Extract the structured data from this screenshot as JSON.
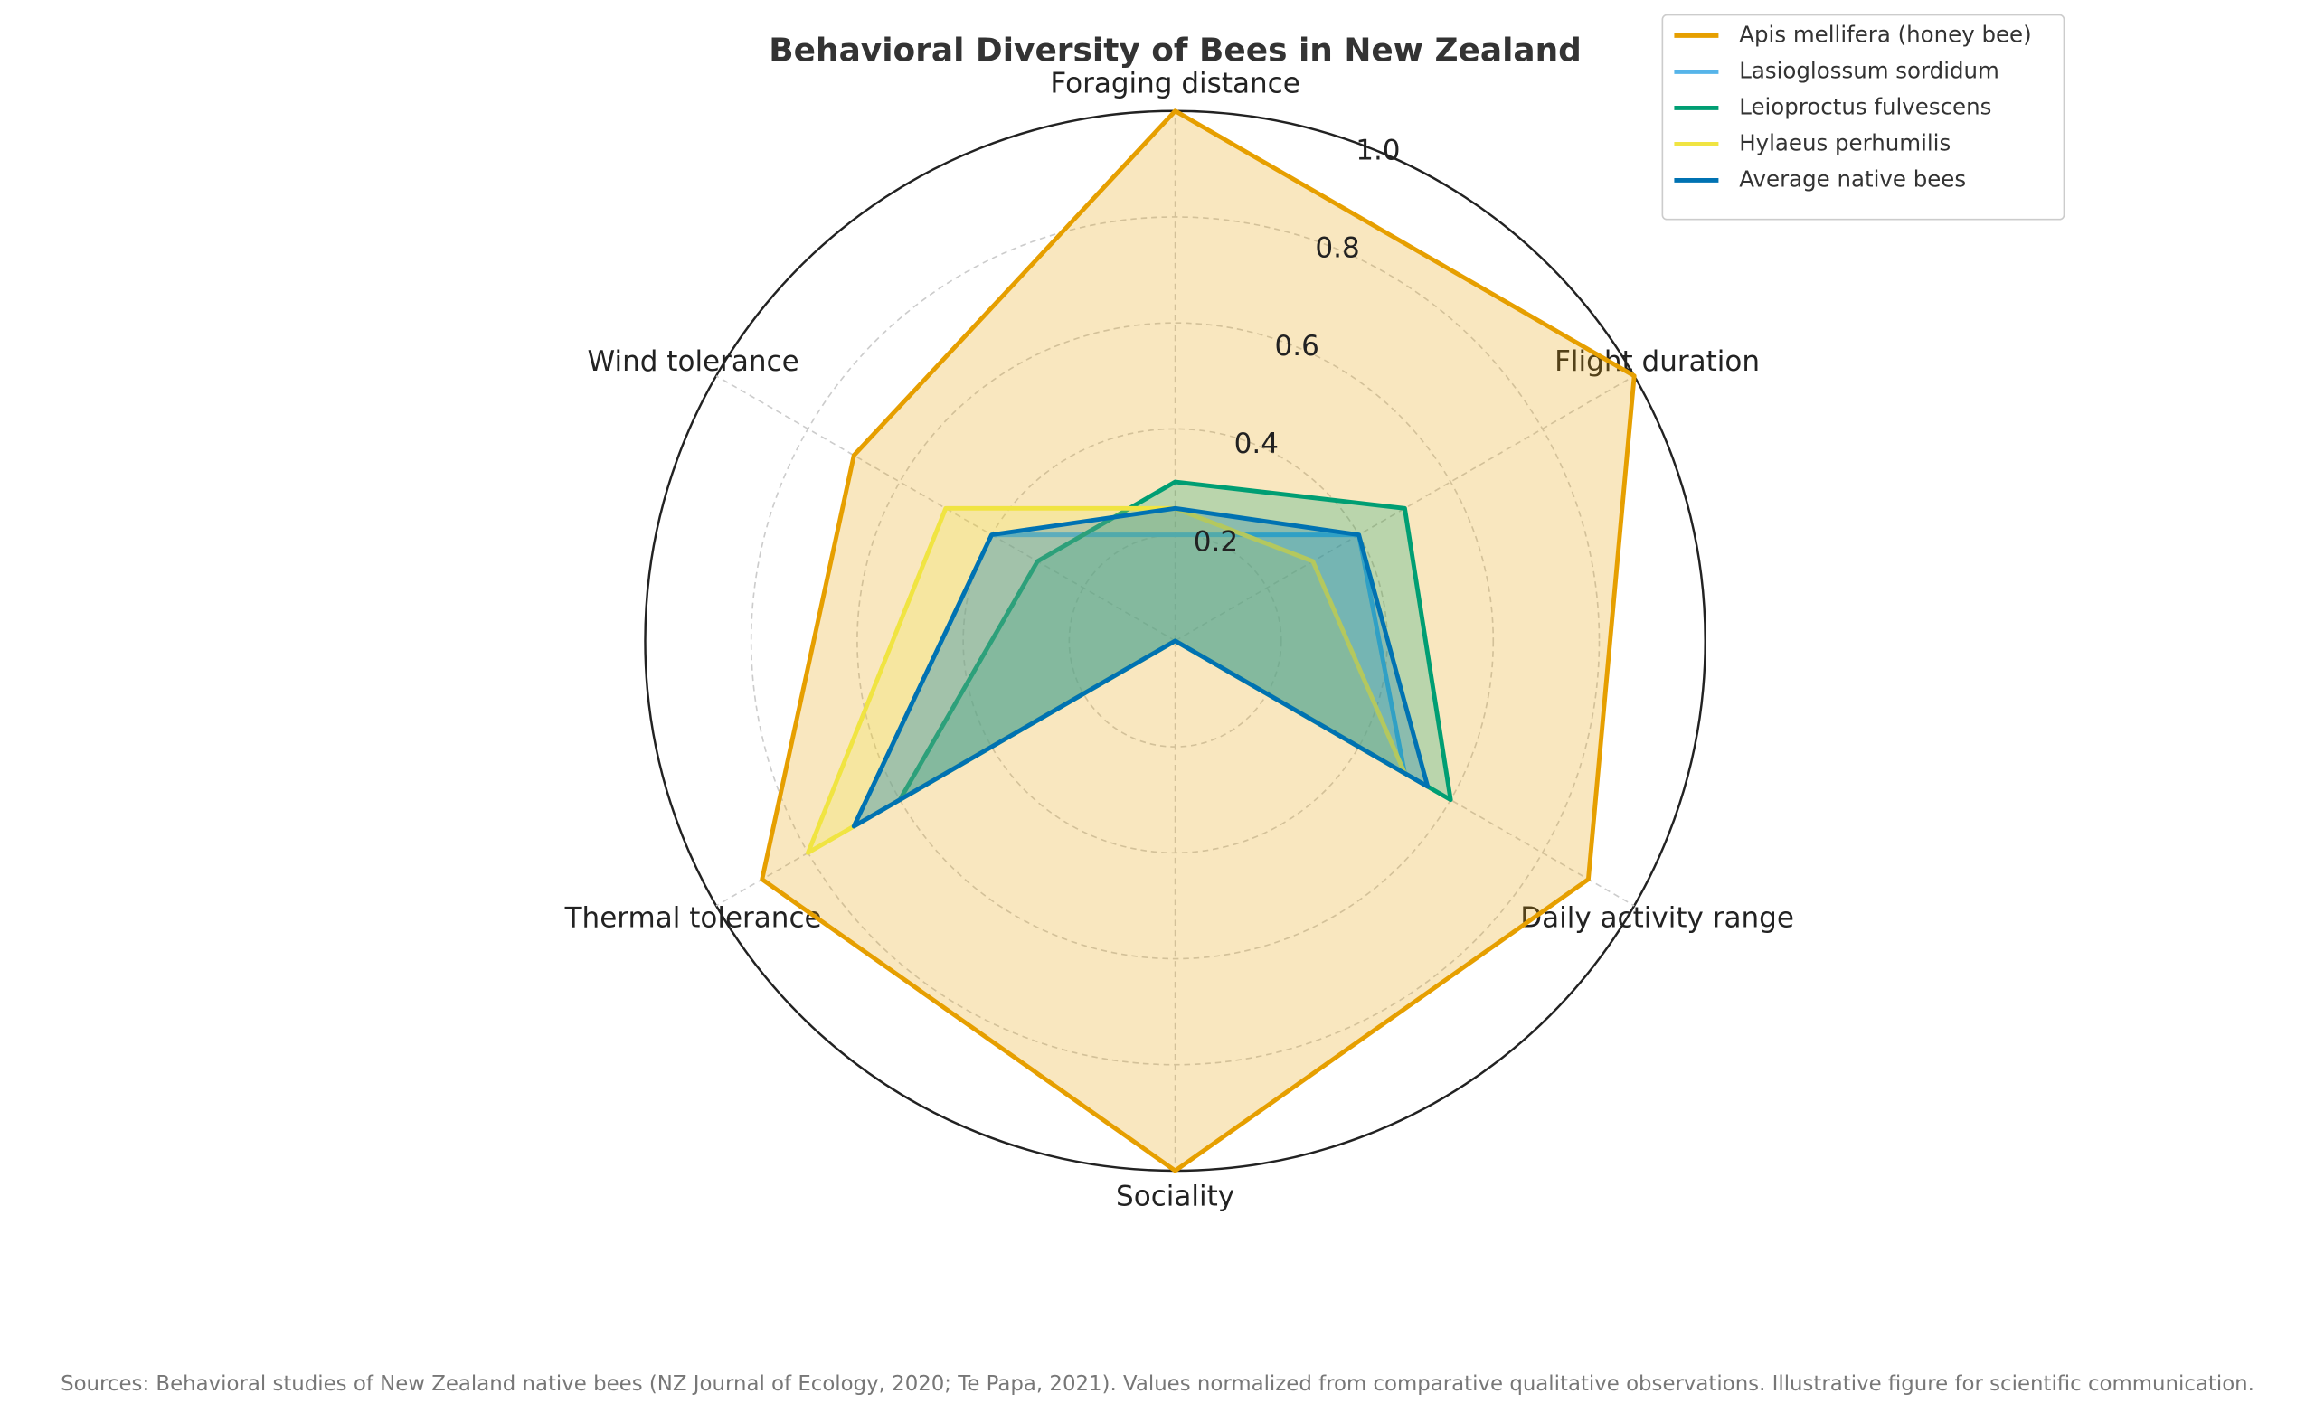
{
  "chart_data": {
    "type": "radar",
    "title": "Behavioral Diversity of Bees in New Zealand",
    "categories": [
      "Foraging distance",
      "Flight duration",
      "Daily activity range",
      "Sociality",
      "Thermal tolerance",
      "Wind tolerance"
    ],
    "series": [
      {
        "name": "Apis mellifera (honey bee)",
        "color": "#E69F00",
        "values": [
          1.0,
          1.0,
          0.9,
          1.0,
          0.9,
          0.7
        ]
      },
      {
        "name": "Lasioglossum sordidum",
        "color": "#56B4E9",
        "values": [
          0.2,
          0.4,
          0.5,
          0.0,
          0.7,
          0.4
        ]
      },
      {
        "name": "Leioproctus fulvescens",
        "color": "#009E73",
        "values": [
          0.3,
          0.5,
          0.6,
          0.0,
          0.6,
          0.3
        ]
      },
      {
        "name": "Hylaeus perhumilis",
        "color": "#F0E442",
        "values": [
          0.25,
          0.3,
          0.5,
          0.0,
          0.8,
          0.5
        ]
      },
      {
        "name": "Average native bees",
        "color": "#0072B2",
        "values": [
          0.25,
          0.4,
          0.55,
          0.0,
          0.7,
          0.4
        ]
      }
    ],
    "ylim": [
      0,
      1.0
    ],
    "yticks": [
      0.2,
      0.4,
      0.6,
      0.8,
      {
        "value": 1.0,
        "label": "1.0"
      }
    ],
    "grid": true,
    "legend": "upper right",
    "footnote": "Sources: Behavioral studies of New Zealand native bees (NZ Journal of Ecology, 2020; Te Papa, 2021). Values normalized from comparative qualitative observations. Illustrative figure for scientific communication."
  }
}
